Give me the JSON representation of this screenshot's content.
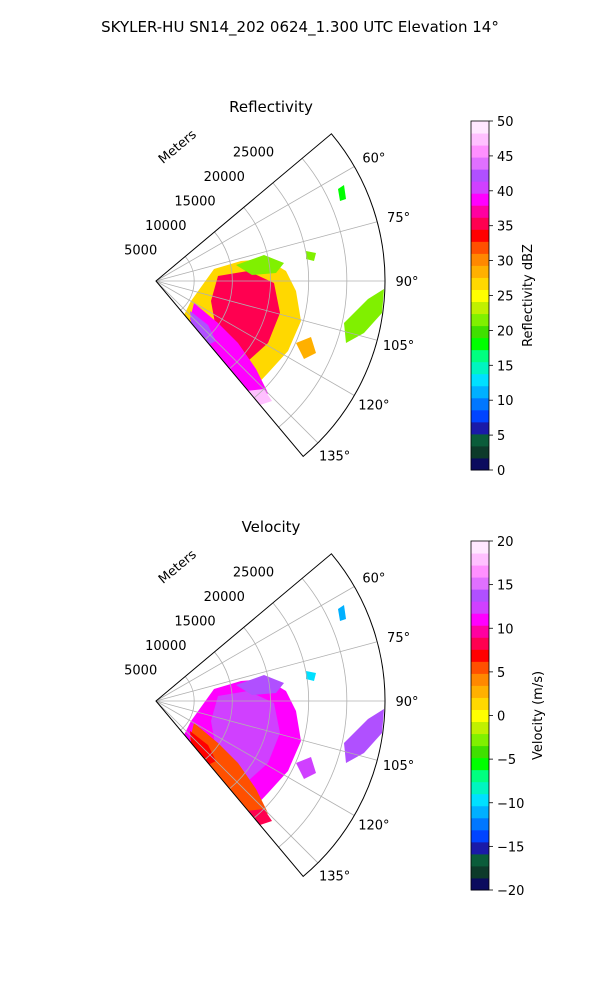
{
  "suptitle": "SKYLER-HU  SN14_202  0624_1.300 UTC Elevation 14°",
  "chart_data": [
    {
      "type": "heatmap",
      "subtype": "ppi-sector",
      "title": "Reflectivity",
      "range_label": "Meters",
      "range_ticks": [
        5000,
        10000,
        15000,
        20000,
        25000
      ],
      "range_max": 30000,
      "azimuth_range": [
        50,
        140
      ],
      "azimuth_ticks": [
        "60°",
        "75°",
        "90°",
        "105°",
        "120°",
        "135°"
      ],
      "grid": true,
      "colorbar": {
        "label": "Reflectivity dBZ",
        "range": [
          0,
          50
        ],
        "ticks": [
          "0",
          "5",
          "10",
          "15",
          "20",
          "25",
          "30",
          "35",
          "40",
          "45",
          "50"
        ],
        "colors": [
          "#0b0b5e",
          "#0d3a2a",
          "#0a5c3a",
          "#1a1aa8",
          "#0044ff",
          "#0077ff",
          "#00b0ff",
          "#00e0ff",
          "#00f5c0",
          "#00ff80",
          "#00ff00",
          "#40e000",
          "#80f000",
          "#c0f000",
          "#ffff00",
          "#ffd800",
          "#ffb000",
          "#ff8800",
          "#ff5000",
          "#ff0000",
          "#ff0050",
          "#ff00a0",
          "#ff00ff",
          "#d040ff",
          "#b050ff",
          "#e070ff",
          "#ff90ff",
          "#ffc0ff",
          "#ffe8ff"
        ]
      }
    },
    {
      "type": "heatmap",
      "subtype": "ppi-sector",
      "title": "Velocity",
      "range_label": "Meters",
      "range_ticks": [
        5000,
        10000,
        15000,
        20000,
        25000
      ],
      "range_max": 30000,
      "azimuth_range": [
        50,
        140
      ],
      "azimuth_ticks": [
        "60°",
        "75°",
        "90°",
        "105°",
        "120°",
        "135°"
      ],
      "grid": true,
      "colorbar": {
        "label": "Velocity (m/s)",
        "range": [
          -20,
          20
        ],
        "ticks": [
          "−20",
          "−15",
          "−10",
          "−5",
          "0",
          "5",
          "10",
          "15",
          "20"
        ],
        "colors": [
          "#0b0b5e",
          "#0d3a2a",
          "#0a5c3a",
          "#1a1aa8",
          "#0044ff",
          "#0077ff",
          "#00b0ff",
          "#00e0ff",
          "#00f5c0",
          "#00ff80",
          "#00ff00",
          "#40e000",
          "#80f000",
          "#c0f000",
          "#ffff00",
          "#ffd800",
          "#ffb000",
          "#ff8800",
          "#ff5000",
          "#ff0000",
          "#ff0050",
          "#ff00a0",
          "#ff00ff",
          "#d040ff",
          "#b050ff",
          "#e070ff",
          "#ff90ff",
          "#ffc0ff",
          "#ffe8ff"
        ]
      }
    }
  ]
}
